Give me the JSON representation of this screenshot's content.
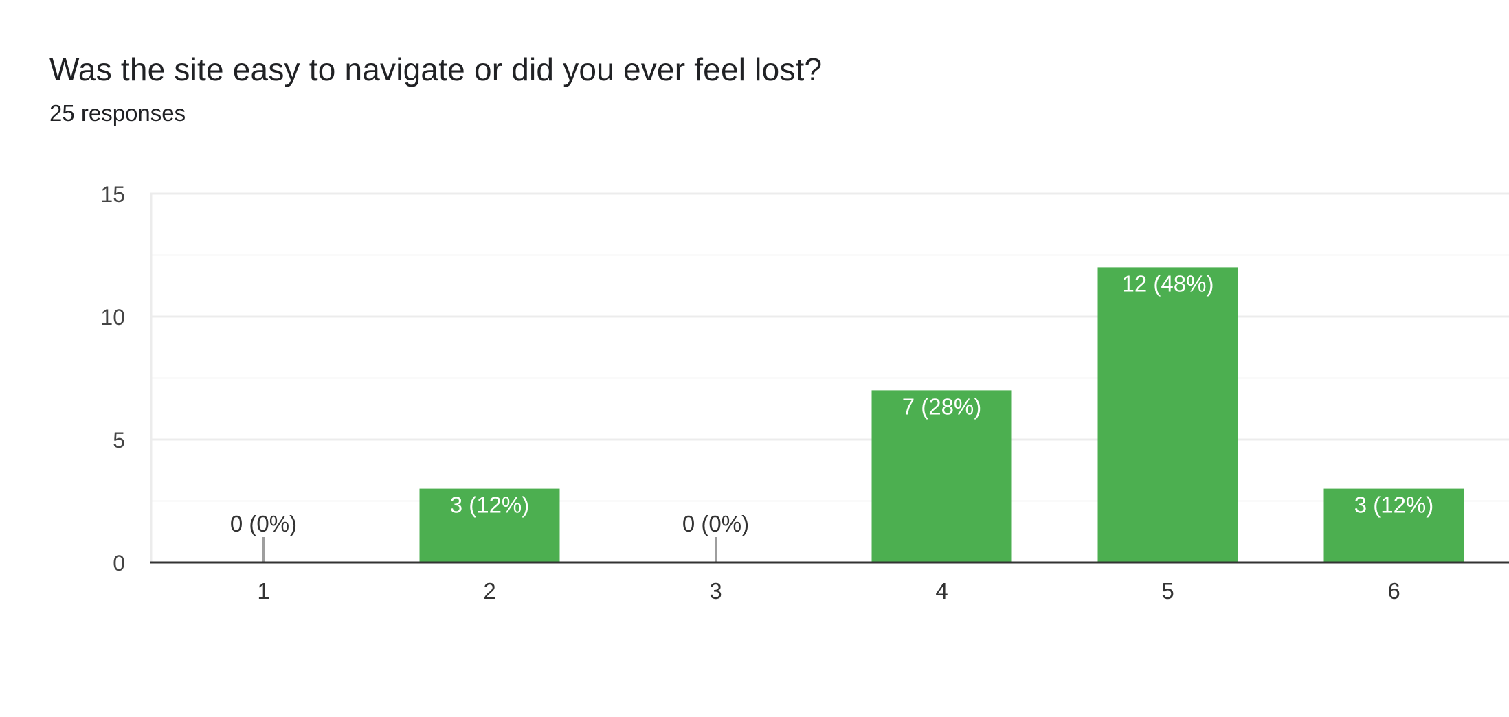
{
  "question": {
    "title": "Was the site easy to navigate or did you ever feel lost?",
    "responses": "25 responses"
  },
  "colors": {
    "bar": "#4caf50",
    "gridline": "#ececec",
    "minor_gridline": "#f5f5f5",
    "baseline": "#333333",
    "axis_text": "#444444",
    "outside_label": "#333333",
    "inside_label": "#ffffff",
    "stub": "#9e9e9e"
  },
  "chart_data": {
    "type": "bar",
    "categories": [
      "1",
      "2",
      "3",
      "4",
      "5",
      "6"
    ],
    "values": [
      0,
      3,
      0,
      7,
      12,
      3
    ],
    "data_labels": [
      "0 (0%)",
      "3 (12%)",
      "0 (0%)",
      "7 (28%)",
      "12 (48%)",
      "3 (12%)"
    ],
    "title": "Was the site easy to navigate or did you ever feel lost?",
    "xlabel": "",
    "ylabel": "",
    "ylim": [
      0,
      15
    ],
    "yticks": [
      0,
      5,
      10,
      15
    ],
    "grid": true,
    "legend": "none"
  }
}
